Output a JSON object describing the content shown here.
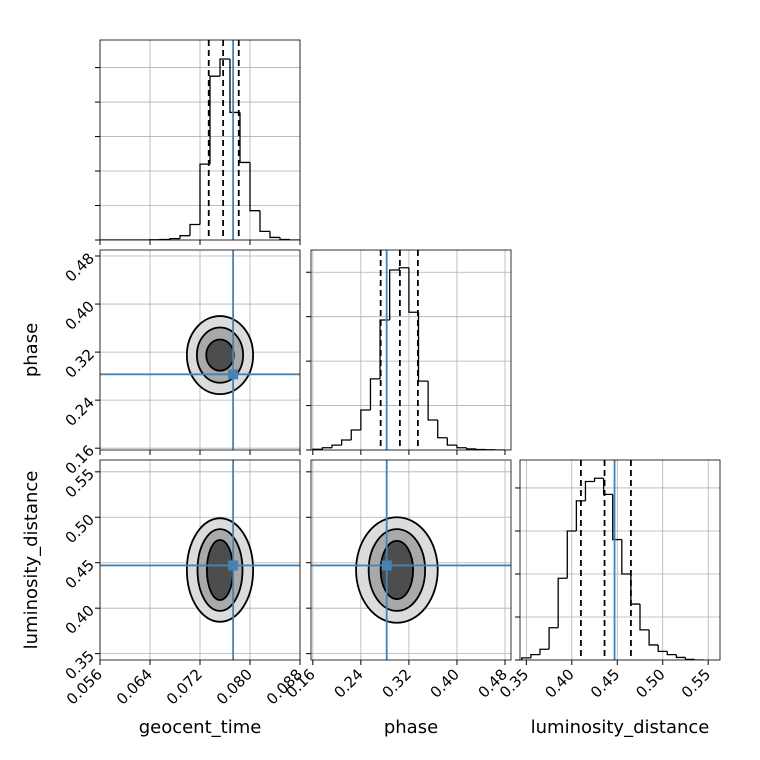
{
  "chart_data": [
    {
      "type": "histogram",
      "xlim": [
        0.056,
        0.088
      ],
      "bins": [
        0.056,
        0.0576,
        0.0592,
        0.0608,
        0.0624,
        0.064,
        0.0656,
        0.0672,
        0.0688,
        0.0704,
        0.072,
        0.0736,
        0.0752,
        0.0768,
        0.0784,
        0.08,
        0.0816,
        0.0832,
        0.0848,
        0.0864,
        0.088
      ],
      "values": [
        0,
        0,
        0,
        0,
        0,
        1,
        3,
        8,
        25,
        90,
        440,
        950,
        1050,
        740,
        450,
        170,
        50,
        15,
        3,
        0
      ],
      "ylim": [
        0,
        1160
      ],
      "yticks": [
        0,
        200,
        400,
        600,
        800,
        1000
      ],
      "quantiles": [
        0.0734,
        0.0757,
        0.0782
      ],
      "truth": 0.0773,
      "color": "#000000",
      "truth_color": "#4682b4"
    },
    {
      "type": "hist2d",
      "xlim": [
        0.056,
        0.088
      ],
      "ylim": [
        0.157,
        0.49
      ],
      "ylabel": "phase",
      "yticks": [
        0.16,
        0.24,
        0.32,
        {
          "value": 0.4,
          "label": "0.40"
        },
        0.48
      ],
      "contours": [
        {
          "x": 0.0752,
          "y": 0.315,
          "rx": 0.0053,
          "ry": 0.065,
          "fill": "#dcdcdc"
        },
        {
          "x": 0.0752,
          "y": 0.315,
          "rx": 0.0037,
          "ry": 0.046,
          "fill": "#a9a9a9"
        },
        {
          "x": 0.0752,
          "y": 0.315,
          "rx": 0.0022,
          "ry": 0.026,
          "fill": "#4d4d4d"
        }
      ],
      "truth_x": 0.0773,
      "truth_y": 0.283,
      "truth_color": "#4682b4"
    },
    {
      "type": "histogram",
      "xlim": [
        0.157,
        0.49
      ],
      "bins": [
        0.16,
        0.176,
        0.192,
        0.208,
        0.224,
        0.24,
        0.256,
        0.272,
        0.288,
        0.304,
        0.32,
        0.336,
        0.352,
        0.368,
        0.384,
        0.4,
        0.416,
        0.432,
        0.448,
        0.464,
        0.48
      ],
      "values": [
        3,
        10,
        22,
        45,
        90,
        180,
        320,
        585,
        810,
        820,
        620,
        310,
        135,
        55,
        22,
        10,
        5,
        2,
        1,
        0
      ],
      "ylim": [
        0,
        900
      ],
      "yticks": [
        0,
        200,
        400,
        600,
        800
      ],
      "quantiles": [
        0.273,
        0.305,
        0.335
      ],
      "truth": 0.283,
      "color": "#000000",
      "truth_color": "#4682b4"
    },
    {
      "type": "hist2d",
      "xlim": [
        0.056,
        0.088
      ],
      "ylim": [
        0.343,
        0.563
      ],
      "ylabel": "luminosity_distance",
      "xlabel": "geocent_time",
      "xticks": [
        0.056,
        0.064,
        0.072,
        {
          "value": 0.08,
          "label": "0.080"
        },
        0.088
      ],
      "yticks": [
        0.35,
        {
          "value": 0.4,
          "label": "0.40"
        },
        0.45,
        {
          "value": 0.5,
          "label": "0.50"
        },
        0.55
      ],
      "contours": [
        {
          "x": 0.0752,
          "y": 0.442,
          "rx": 0.0053,
          "ry": 0.057,
          "fill": "#dcdcdc"
        },
        {
          "x": 0.0752,
          "y": 0.442,
          "rx": 0.0036,
          "ry": 0.045,
          "fill": "#a9a9a9"
        },
        {
          "x": 0.0752,
          "y": 0.442,
          "rx": 0.0021,
          "ry": 0.033,
          "fill": "#4d4d4d"
        }
      ],
      "truth_x": 0.0773,
      "truth_y": 0.447,
      "truth_color": "#4682b4"
    },
    {
      "type": "hist2d",
      "xlim": [
        0.157,
        0.49
      ],
      "ylim": [
        0.343,
        0.563
      ],
      "xlabel": "phase",
      "xticks": [
        0.16,
        0.24,
        0.32,
        {
          "value": 0.4,
          "label": "0.40"
        },
        0.48
      ],
      "contours": [
        {
          "x": 0.3,
          "y": 0.442,
          "rx": 0.068,
          "ry": 0.058,
          "fill": "#dcdcdc"
        },
        {
          "x": 0.3,
          "y": 0.442,
          "rx": 0.047,
          "ry": 0.045,
          "fill": "#a9a9a9"
        },
        {
          "x": 0.3,
          "y": 0.442,
          "rx": 0.027,
          "ry": 0.032,
          "fill": "#4d4d4d"
        }
      ],
      "truth_x": 0.283,
      "truth_y": 0.447,
      "truth_color": "#4682b4"
    },
    {
      "type": "histogram",
      "xlim": [
        0.343,
        0.563
      ],
      "xlabel": "luminosity_distance",
      "xticks": [
        0.35,
        {
          "value": 0.4,
          "label": "0.40"
        },
        0.45,
        {
          "value": 0.5,
          "label": "0.50"
        },
        0.55
      ],
      "bins": [
        0.345,
        0.355,
        0.365,
        0.375,
        0.385,
        0.395,
        0.405,
        0.415,
        0.425,
        0.435,
        0.445,
        0.455,
        0.465,
        0.475,
        0.485,
        0.495,
        0.505,
        0.515,
        0.525,
        0.535,
        0.545
      ],
      "values": [
        10,
        25,
        50,
        150,
        380,
        600,
        740,
        830,
        845,
        770,
        560,
        400,
        260,
        140,
        70,
        40,
        25,
        12,
        3,
        0
      ],
      "ylim": [
        0,
        930
      ],
      "yticks": [
        0,
        200,
        400,
        600,
        800
      ],
      "quantiles": [
        0.41,
        0.436,
        0.465
      ],
      "truth": 0.447,
      "color": "#000000",
      "truth_color": "#4682b4"
    }
  ]
}
